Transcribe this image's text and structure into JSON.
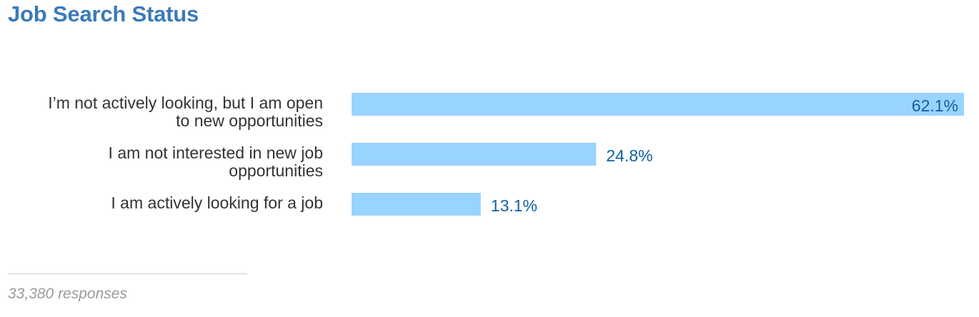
{
  "chart_data": {
    "type": "bar",
    "orientation": "horizontal",
    "title": "Job Search Status",
    "categories": [
      [
        "I’m not actively looking, but I am open",
        "to new opportunities"
      ],
      [
        "I am not interested in new job",
        "opportunities"
      ],
      [
        "I am actively looking for a job"
      ]
    ],
    "values": [
      62.1,
      24.8,
      13.1
    ],
    "value_labels": [
      "62.1%",
      "24.8%",
      "13.1%"
    ],
    "unit": "%",
    "xlim": [
      0,
      62.1
    ],
    "grid": false,
    "legend": "none",
    "bar_color": "#99d3ff",
    "value_label_color": "#11609e"
  },
  "footnote": "33,380 responses",
  "colors": {
    "title": "#3b7ab9",
    "category_text": "#333333",
    "footnote_text": "#9a9a9a",
    "divider": "#cccccc"
  }
}
